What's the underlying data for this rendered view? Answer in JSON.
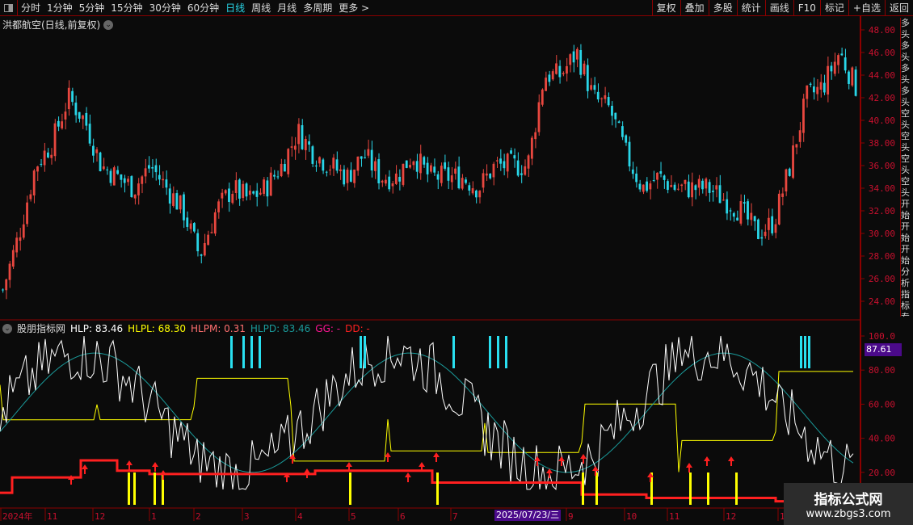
{
  "toolbar": {
    "periods": [
      "分时",
      "1分钟",
      "5分钟",
      "15分钟",
      "30分钟",
      "60分钟",
      "日线",
      "周线",
      "月线",
      "多周期",
      "更多 >"
    ],
    "active_period": "日线",
    "right_buttons": [
      "复权",
      "叠加",
      "多股",
      "统计",
      "画线",
      "F10",
      "标记",
      "+自选",
      "返回"
    ]
  },
  "main_chart": {
    "title": "洪都航空(日线,前复权)",
    "price_ticks": [
      "48.00",
      "46.00",
      "44.00",
      "42.00",
      "40.00",
      "38.00",
      "36.00",
      "34.00",
      "32.00",
      "30.00",
      "28.00",
      "26.00",
      "24.00"
    ],
    "closes": [
      25,
      30,
      36,
      38,
      42,
      40,
      36,
      35,
      34,
      36,
      34,
      32,
      28,
      32,
      34,
      33,
      34,
      36,
      39,
      37,
      36,
      35,
      37,
      35,
      35,
      37,
      35,
      35,
      35,
      34,
      36,
      36,
      36,
      44,
      44,
      46,
      42,
      41,
      37,
      34,
      35,
      34,
      34,
      34,
      33,
      32,
      30,
      31,
      36,
      42,
      43,
      46,
      43
    ],
    "up_color": "#e8473f",
    "down_color": "#29d6e8"
  },
  "indicator": {
    "name": "股朋指标网",
    "values": [
      {
        "label": "HLP: 83.46",
        "color": "#ffffff"
      },
      {
        "label": "HLPL: 68.30",
        "color": "#ffff00"
      },
      {
        "label": "HLPM: 0.31",
        "color": "#ff7070"
      },
      {
        "label": "HLPD: 83.46",
        "color": "#1a9a9a"
      },
      {
        "label": "GG: -",
        "color": "#ff1493"
      },
      {
        "label": "DD: -",
        "color": "#ff2020"
      }
    ],
    "ticks": [
      "100.0",
      "80.00",
      "60.00",
      "40.00",
      "20.00"
    ],
    "cursor_value": "87.61",
    "step_line": [
      [
        0,
        8
      ],
      [
        15,
        17
      ],
      [
        100,
        27
      ],
      [
        145,
        21
      ],
      [
        185,
        19
      ],
      [
        390,
        21
      ],
      [
        535,
        14
      ],
      [
        720,
        7
      ],
      [
        800,
        5
      ],
      [
        960,
        3
      ]
    ]
  },
  "time_axis": {
    "labels": [
      "2024年",
      "11",
      "12",
      "1",
      "2",
      "3",
      "4",
      "5",
      "6",
      "7",
      "9",
      "10",
      "11",
      "12",
      "1"
    ],
    "cursor_date": "2025/07/23/三"
  },
  "right_strip_text": "多头多头多头多头空头空头空头空头开始开始开始分析指标专家",
  "watermark": {
    "name": "指标公式网",
    "url": "www.zbgs3.com"
  }
}
